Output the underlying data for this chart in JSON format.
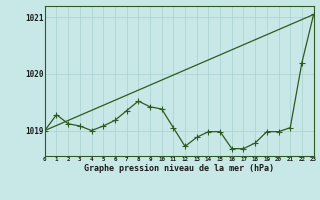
{
  "title": "Graphe pression niveau de la mer (hPa)",
  "background_color": "#c8e8e8",
  "plot_bg_color": "#c8e8e8",
  "grid_color": "#a8d0d0",
  "line_color": "#2d5a1e",
  "border_color": "#2d5a1e",
  "text_color": "#1a1a1a",
  "xlim": [
    0,
    23
  ],
  "ylim": [
    1018.55,
    1021.2
  ],
  "yticks": [
    1019,
    1020,
    1021
  ],
  "xtick_labels": [
    "0",
    "1",
    "2",
    "3",
    "4",
    "5",
    "6",
    "7",
    "8",
    "9",
    "10",
    "11",
    "12",
    "13",
    "14",
    "15",
    "16",
    "17",
    "18",
    "19",
    "20",
    "21",
    "22",
    "23"
  ],
  "series1_x": [
    0,
    1,
    2,
    3,
    4,
    5,
    6,
    7,
    8,
    9,
    10,
    11,
    12,
    13,
    14,
    15,
    16,
    17,
    18,
    19,
    20,
    21,
    22,
    23
  ],
  "series1_y": [
    1019.0,
    1019.28,
    1019.12,
    1019.08,
    1019.0,
    1019.08,
    1019.18,
    1019.35,
    1019.52,
    1019.42,
    1019.38,
    1019.05,
    1018.72,
    1018.88,
    1018.98,
    1018.98,
    1018.68,
    1018.68,
    1018.78,
    1018.98,
    1018.98,
    1019.05,
    1020.2,
    1021.05
  ],
  "series2_x": [
    0,
    23
  ],
  "series2_y": [
    1019.0,
    1021.05
  ],
  "marker_size": 4,
  "linewidth": 0.9,
  "figsize": [
    3.2,
    2.0
  ],
  "dpi": 100
}
